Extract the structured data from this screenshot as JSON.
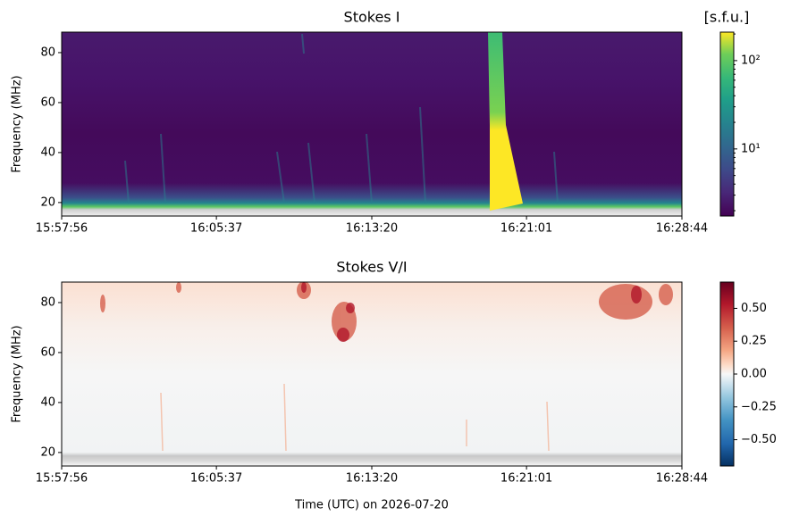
{
  "chart_data": [
    {
      "type": "heatmap",
      "title": "Stokes I",
      "ylabel": "Frequency (MHz)",
      "xlim": [
        "15:57:56",
        "16:28:44"
      ],
      "xticks": [
        "15:57:56",
        "16:05:37",
        "16:13:20",
        "16:21:01",
        "16:28:44"
      ],
      "ylim": [
        14.6,
        88.2
      ],
      "yticks": [
        20,
        40,
        60,
        80
      ],
      "colormap": "viridis",
      "colorbar": {
        "label": "[s.f.u.]",
        "scale": "log",
        "lim": [
          1.74,
          210
        ],
        "ticks": [
          {
            "value": 10,
            "label": "10¹"
          },
          {
            "value": 100,
            "label": "10²"
          }
        ]
      }
    },
    {
      "type": "heatmap",
      "title": "Stokes V/I",
      "ylabel": "Frequency (MHz)",
      "xlabel": "Time (UTC) on 2026-07-20",
      "xlim": [
        "15:57:56",
        "16:28:44"
      ],
      "xticks": [
        "15:57:56",
        "16:05:37",
        "16:13:20",
        "16:21:01",
        "16:28:44"
      ],
      "ylim": [
        14.6,
        88.2
      ],
      "yticks": [
        20,
        40,
        60,
        80
      ],
      "colormap": "RdBu_r",
      "colorbar": {
        "scale": "linear",
        "lim": [
          -0.7,
          0.7
        ],
        "ticks": [
          {
            "value": -0.5,
            "label": "−0.50"
          },
          {
            "value": -0.25,
            "label": "−0.25"
          },
          {
            "value": 0,
            "label": "0.00"
          },
          {
            "value": 0.25,
            "label": "0.25"
          },
          {
            "value": 0.5,
            "label": "0.50"
          }
        ]
      }
    }
  ]
}
